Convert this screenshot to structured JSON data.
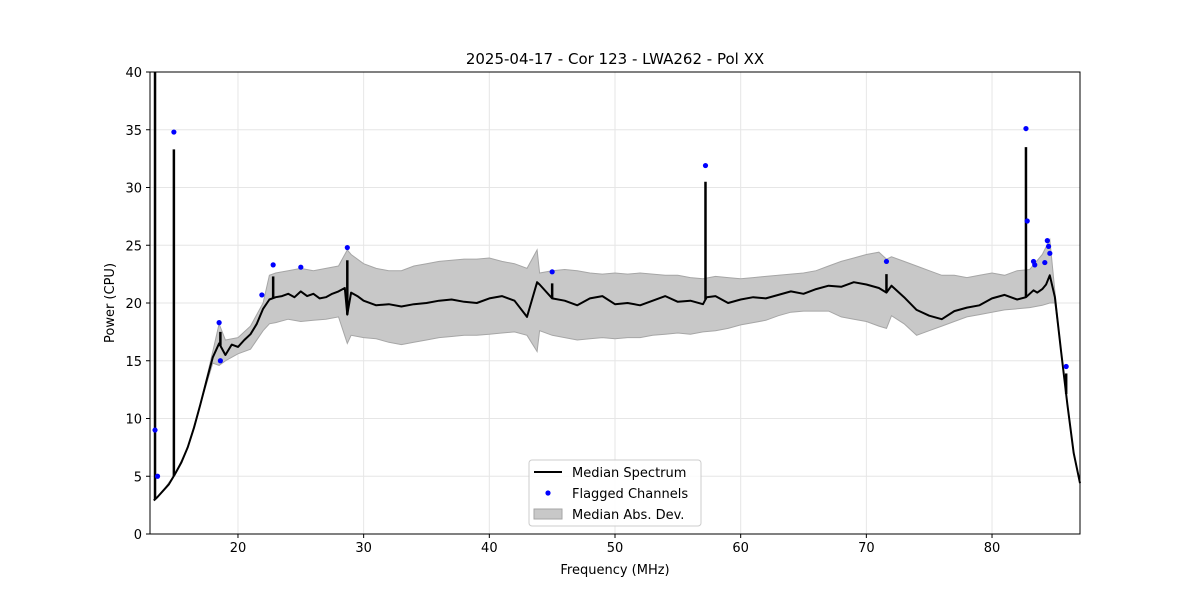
{
  "chart_data": {
    "type": "line",
    "title": "2025-04-17 - Cor 123 - LWA262 - Pol XX",
    "xlabel": "Frequency (MHz)",
    "ylabel": "Power (CPU)",
    "xlim": [
      13,
      87
    ],
    "ylim": [
      0,
      40
    ],
    "xticks": [
      20,
      30,
      40,
      50,
      60,
      70,
      80
    ],
    "yticks": [
      0,
      5,
      10,
      15,
      20,
      25,
      30,
      35,
      40
    ],
    "grid": true,
    "legend": {
      "placement": "bottom-center",
      "entries": [
        {
          "label": "Median Spectrum",
          "kind": "line",
          "color": "#000000"
        },
        {
          "label": "Flagged Channels",
          "kind": "marker",
          "color": "#0000ff"
        },
        {
          "label": "Median Abs. Dev.",
          "kind": "patch",
          "color": "#c8c8c8"
        }
      ]
    },
    "colors": {
      "median": "#000000",
      "flagged": "#0000ff",
      "mad_fill": "#c8c8c8",
      "mad_edge": "#a6a6a6",
      "grid": "#e6e6e6"
    },
    "series": [
      {
        "name": "Median Spectrum",
        "x": [
          13.3,
          13.6,
          14.0,
          14.5,
          15.0,
          15.5,
          16.0,
          16.5,
          17.0,
          17.5,
          18.0,
          18.5,
          19.0,
          19.5,
          20.0,
          20.5,
          21.0,
          21.5,
          22.0,
          22.5,
          23.0,
          23.5,
          24.0,
          24.5,
          25.0,
          25.5,
          26.0,
          26.5,
          27.0,
          27.5,
          28.0,
          28.5,
          28.7,
          29.0,
          29.5,
          30.0,
          31.0,
          32.0,
          33.0,
          34.0,
          35.0,
          36.0,
          37.0,
          38.0,
          39.0,
          40.0,
          41.0,
          42.0,
          43.0,
          43.8,
          44.0,
          45.0,
          46.0,
          47.0,
          48.0,
          49.0,
          50.0,
          51.0,
          52.0,
          53.0,
          54.0,
          55.0,
          56.0,
          57.0,
          57.3,
          58.0,
          59.0,
          60.0,
          61.0,
          62.0,
          63.0,
          64.0,
          65.0,
          66.0,
          67.0,
          68.0,
          69.0,
          70.0,
          71.0,
          71.6,
          72.0,
          73.0,
          74.0,
          75.0,
          76.0,
          77.0,
          78.0,
          79.0,
          80.0,
          81.0,
          82.0,
          82.7,
          83.0,
          83.3,
          83.6,
          84.0,
          84.3,
          84.6,
          85.0,
          85.5,
          86.0,
          86.5,
          87.0
        ],
        "y": [
          2.9,
          3.2,
          3.7,
          4.3,
          5.2,
          6.2,
          7.5,
          9.2,
          11.2,
          13.3,
          15.3,
          16.5,
          15.5,
          16.4,
          16.2,
          16.8,
          17.3,
          18.2,
          19.5,
          20.3,
          20.5,
          20.6,
          20.8,
          20.5,
          21.0,
          20.6,
          20.8,
          20.4,
          20.5,
          20.8,
          21.0,
          21.3,
          19.0,
          20.9,
          20.6,
          20.2,
          19.8,
          19.9,
          19.7,
          19.9,
          20.0,
          20.2,
          20.3,
          20.1,
          20.0,
          20.4,
          20.6,
          20.2,
          18.8,
          21.8,
          21.6,
          20.4,
          20.2,
          19.8,
          20.4,
          20.6,
          19.9,
          20.0,
          19.8,
          20.2,
          20.6,
          20.1,
          20.2,
          19.9,
          20.5,
          20.6,
          20.0,
          20.3,
          20.5,
          20.4,
          20.7,
          21.0,
          20.8,
          21.2,
          21.5,
          21.4,
          21.8,
          21.6,
          21.3,
          20.9,
          21.5,
          20.5,
          19.4,
          18.9,
          18.6,
          19.3,
          19.6,
          19.8,
          20.4,
          20.7,
          20.3,
          20.5,
          20.8,
          21.1,
          20.9,
          21.2,
          21.6,
          22.4,
          20.5,
          15.8,
          11.2,
          7.0,
          4.4
        ]
      },
      {
        "name": "Median Abs. Dev.",
        "x": [
          13.3,
          14.0,
          15.0,
          16.0,
          17.0,
          18.0,
          18.5,
          19.0,
          20.0,
          21.0,
          22.0,
          22.5,
          23.0,
          24.0,
          25.0,
          26.0,
          27.0,
          28.0,
          28.7,
          29.0,
          30.0,
          31.0,
          32.0,
          33.0,
          34.0,
          35.0,
          36.0,
          37.0,
          38.0,
          39.0,
          40.0,
          41.0,
          42.0,
          43.0,
          43.8,
          44.0,
          45.0,
          46.0,
          47.0,
          48.0,
          49.0,
          50.0,
          51.0,
          52.0,
          53.0,
          54.0,
          55.0,
          56.0,
          57.0,
          58.0,
          59.0,
          60.0,
          61.0,
          62.0,
          63.0,
          64.0,
          65.0,
          66.0,
          67.0,
          68.0,
          69.0,
          70.0,
          71.0,
          71.6,
          72.0,
          73.0,
          74.0,
          75.0,
          76.0,
          77.0,
          78.0,
          79.0,
          80.0,
          81.0,
          82.0,
          83.0,
          84.0,
          84.6,
          85.0,
          85.5,
          86.0,
          86.5,
          87.0
        ],
        "lower": [
          2.9,
          3.7,
          5.2,
          7.5,
          11.2,
          14.8,
          14.6,
          15.0,
          15.6,
          16.0,
          17.6,
          18.2,
          18.3,
          18.6,
          18.4,
          18.5,
          18.6,
          18.8,
          16.5,
          17.2,
          17.0,
          16.9,
          16.6,
          16.4,
          16.6,
          16.8,
          17.0,
          17.1,
          17.2,
          17.2,
          17.3,
          17.4,
          17.5,
          17.2,
          15.8,
          17.6,
          17.2,
          17.0,
          16.8,
          16.9,
          17.0,
          16.9,
          17.0,
          17.0,
          17.2,
          17.3,
          17.4,
          17.3,
          17.5,
          17.6,
          17.8,
          18.1,
          18.3,
          18.5,
          18.9,
          19.2,
          19.3,
          19.3,
          19.3,
          18.8,
          18.6,
          18.4,
          18.0,
          17.8,
          18.9,
          18.2,
          17.2,
          17.6,
          18.0,
          18.4,
          18.8,
          19.0,
          19.2,
          19.4,
          19.5,
          19.6,
          19.8,
          20.0,
          20.0,
          15.8,
          11.2,
          7.0,
          4.4
        ],
        "upper": [
          2.9,
          3.7,
          5.2,
          7.5,
          11.2,
          15.8,
          18.2,
          16.8,
          17.0,
          18.0,
          20.0,
          22.4,
          22.6,
          22.8,
          23.0,
          22.8,
          23.0,
          23.2,
          24.6,
          24.2,
          23.4,
          23.0,
          22.8,
          22.8,
          23.2,
          23.4,
          23.6,
          23.7,
          23.8,
          23.8,
          23.9,
          23.6,
          23.4,
          23.0,
          24.6,
          22.6,
          22.8,
          22.9,
          22.8,
          22.6,
          22.5,
          22.6,
          22.5,
          22.6,
          22.5,
          22.4,
          22.4,
          22.2,
          22.1,
          22.3,
          22.2,
          22.1,
          22.2,
          22.3,
          22.4,
          22.5,
          22.6,
          22.8,
          23.2,
          23.6,
          23.9,
          24.2,
          24.4,
          23.8,
          24.0,
          23.6,
          23.2,
          22.8,
          22.4,
          22.4,
          22.2,
          22.4,
          22.6,
          22.4,
          22.8,
          22.9,
          24.2,
          25.5,
          21.0,
          15.8,
          11.2,
          7.0,
          4.4
        ]
      },
      {
        "name": "Flagged Channels",
        "x": [
          13.4,
          13.6,
          14.9,
          18.5,
          18.6,
          21.9,
          22.8,
          25.0,
          28.7,
          45.0,
          57.2,
          71.6,
          82.7,
          82.8,
          83.3,
          83.4,
          84.2,
          84.4,
          84.5,
          84.6,
          85.9
        ],
        "y": [
          9.0,
          5.0,
          34.8,
          18.3,
          15.0,
          20.7,
          23.3,
          23.1,
          24.8,
          22.7,
          31.9,
          23.6,
          35.1,
          27.1,
          23.6,
          23.3,
          23.5,
          25.4,
          24.9,
          24.3,
          14.5
        ]
      },
      {
        "name": "Spikes",
        "x": [
          13.4,
          14.9,
          18.6,
          22.8,
          28.7,
          45.0,
          57.2,
          71.6,
          82.7,
          85.9
        ],
        "y": [
          40,
          33.3,
          17.5,
          22.3,
          23.7,
          21.7,
          30.5,
          22.5,
          33.5,
          13.9
        ]
      }
    ]
  }
}
